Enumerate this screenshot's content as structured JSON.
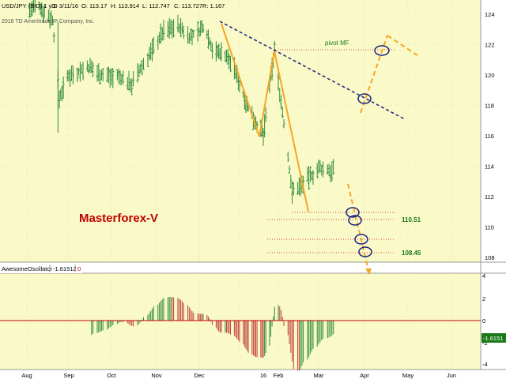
{
  "header": {
    "symbol": "USD/JPY (BID) 1 y D",
    "date": "D: 3/11/16",
    "open": "O: 113.17",
    "high": "H: 113.914",
    "low": "L: 112.747",
    "close": "C: 113.727",
    "range": "R: 1.167",
    "copyright": "2016 TD Ameritrade IP Company, Inc."
  },
  "annotations": {
    "brand": "Masterforex-V",
    "pivot_label": "pivot MF",
    "level_upper": "110.51",
    "level_lower": "108.45"
  },
  "oscillator": {
    "name": "AwesomeOscillator",
    "value": "-1.61512",
    "zero": "0",
    "value_tag": "-1.6151",
    "y_ticks": [
      "4",
      "2",
      "0",
      "-2",
      "-4"
    ]
  },
  "colors": {
    "price_bg": "#fafac8",
    "osc_bg": "#fafac8",
    "bar": "#2e8b3a",
    "trend": "#1a237e",
    "pivot_line": "#e04040",
    "orange": "#f5a623",
    "brand": "#c00000",
    "level_text": "#1a7a1a",
    "osc_up": "#2e8b3a",
    "osc_down": "#c04040"
  },
  "chart_data": {
    "type": "candlestick",
    "y_ticks": [
      124,
      122,
      120,
      118,
      116,
      114,
      112,
      110,
      108
    ],
    "ylim": [
      107.6,
      124.5
    ],
    "x_labels": [
      "Aug",
      "Sep",
      "Oct",
      "Nov",
      "Dec",
      "16",
      "Feb",
      "Mar",
      "Apr",
      "May",
      "Jun"
    ],
    "close_path": [
      [
        "2015-08-01",
        124.2
      ],
      [
        "2015-08-10",
        124.5
      ],
      [
        "2015-08-20",
        123.6
      ],
      [
        "2015-08-25",
        118.5
      ],
      [
        "2015-09-01",
        120.0
      ],
      [
        "2015-09-15",
        120.5
      ],
      [
        "2015-09-25",
        120.0
      ],
      [
        "2015-10-05",
        119.9
      ],
      [
        "2015-10-15",
        119.4
      ],
      [
        "2015-10-25",
        121.0
      ],
      [
        "2015-11-05",
        122.8
      ],
      [
        "2015-11-15",
        123.3
      ],
      [
        "2015-11-25",
        122.5
      ],
      [
        "2015-12-05",
        123.2
      ],
      [
        "2015-12-12",
        121.5
      ],
      [
        "2015-12-20",
        121.5
      ],
      [
        "2015-12-28",
        120.4
      ],
      [
        "2016-01-08",
        117.8
      ],
      [
        "2016-01-20",
        116.0
      ],
      [
        "2016-01-29",
        121.7
      ],
      [
        "2016-02-05",
        116.8
      ],
      [
        "2016-02-11",
        112.3
      ],
      [
        "2016-02-20",
        113.0
      ],
      [
        "2016-03-01",
        113.8
      ],
      [
        "2016-03-11",
        113.7
      ]
    ],
    "levels": [
      110.51,
      108.45
    ],
    "pivot": 121.8
  }
}
